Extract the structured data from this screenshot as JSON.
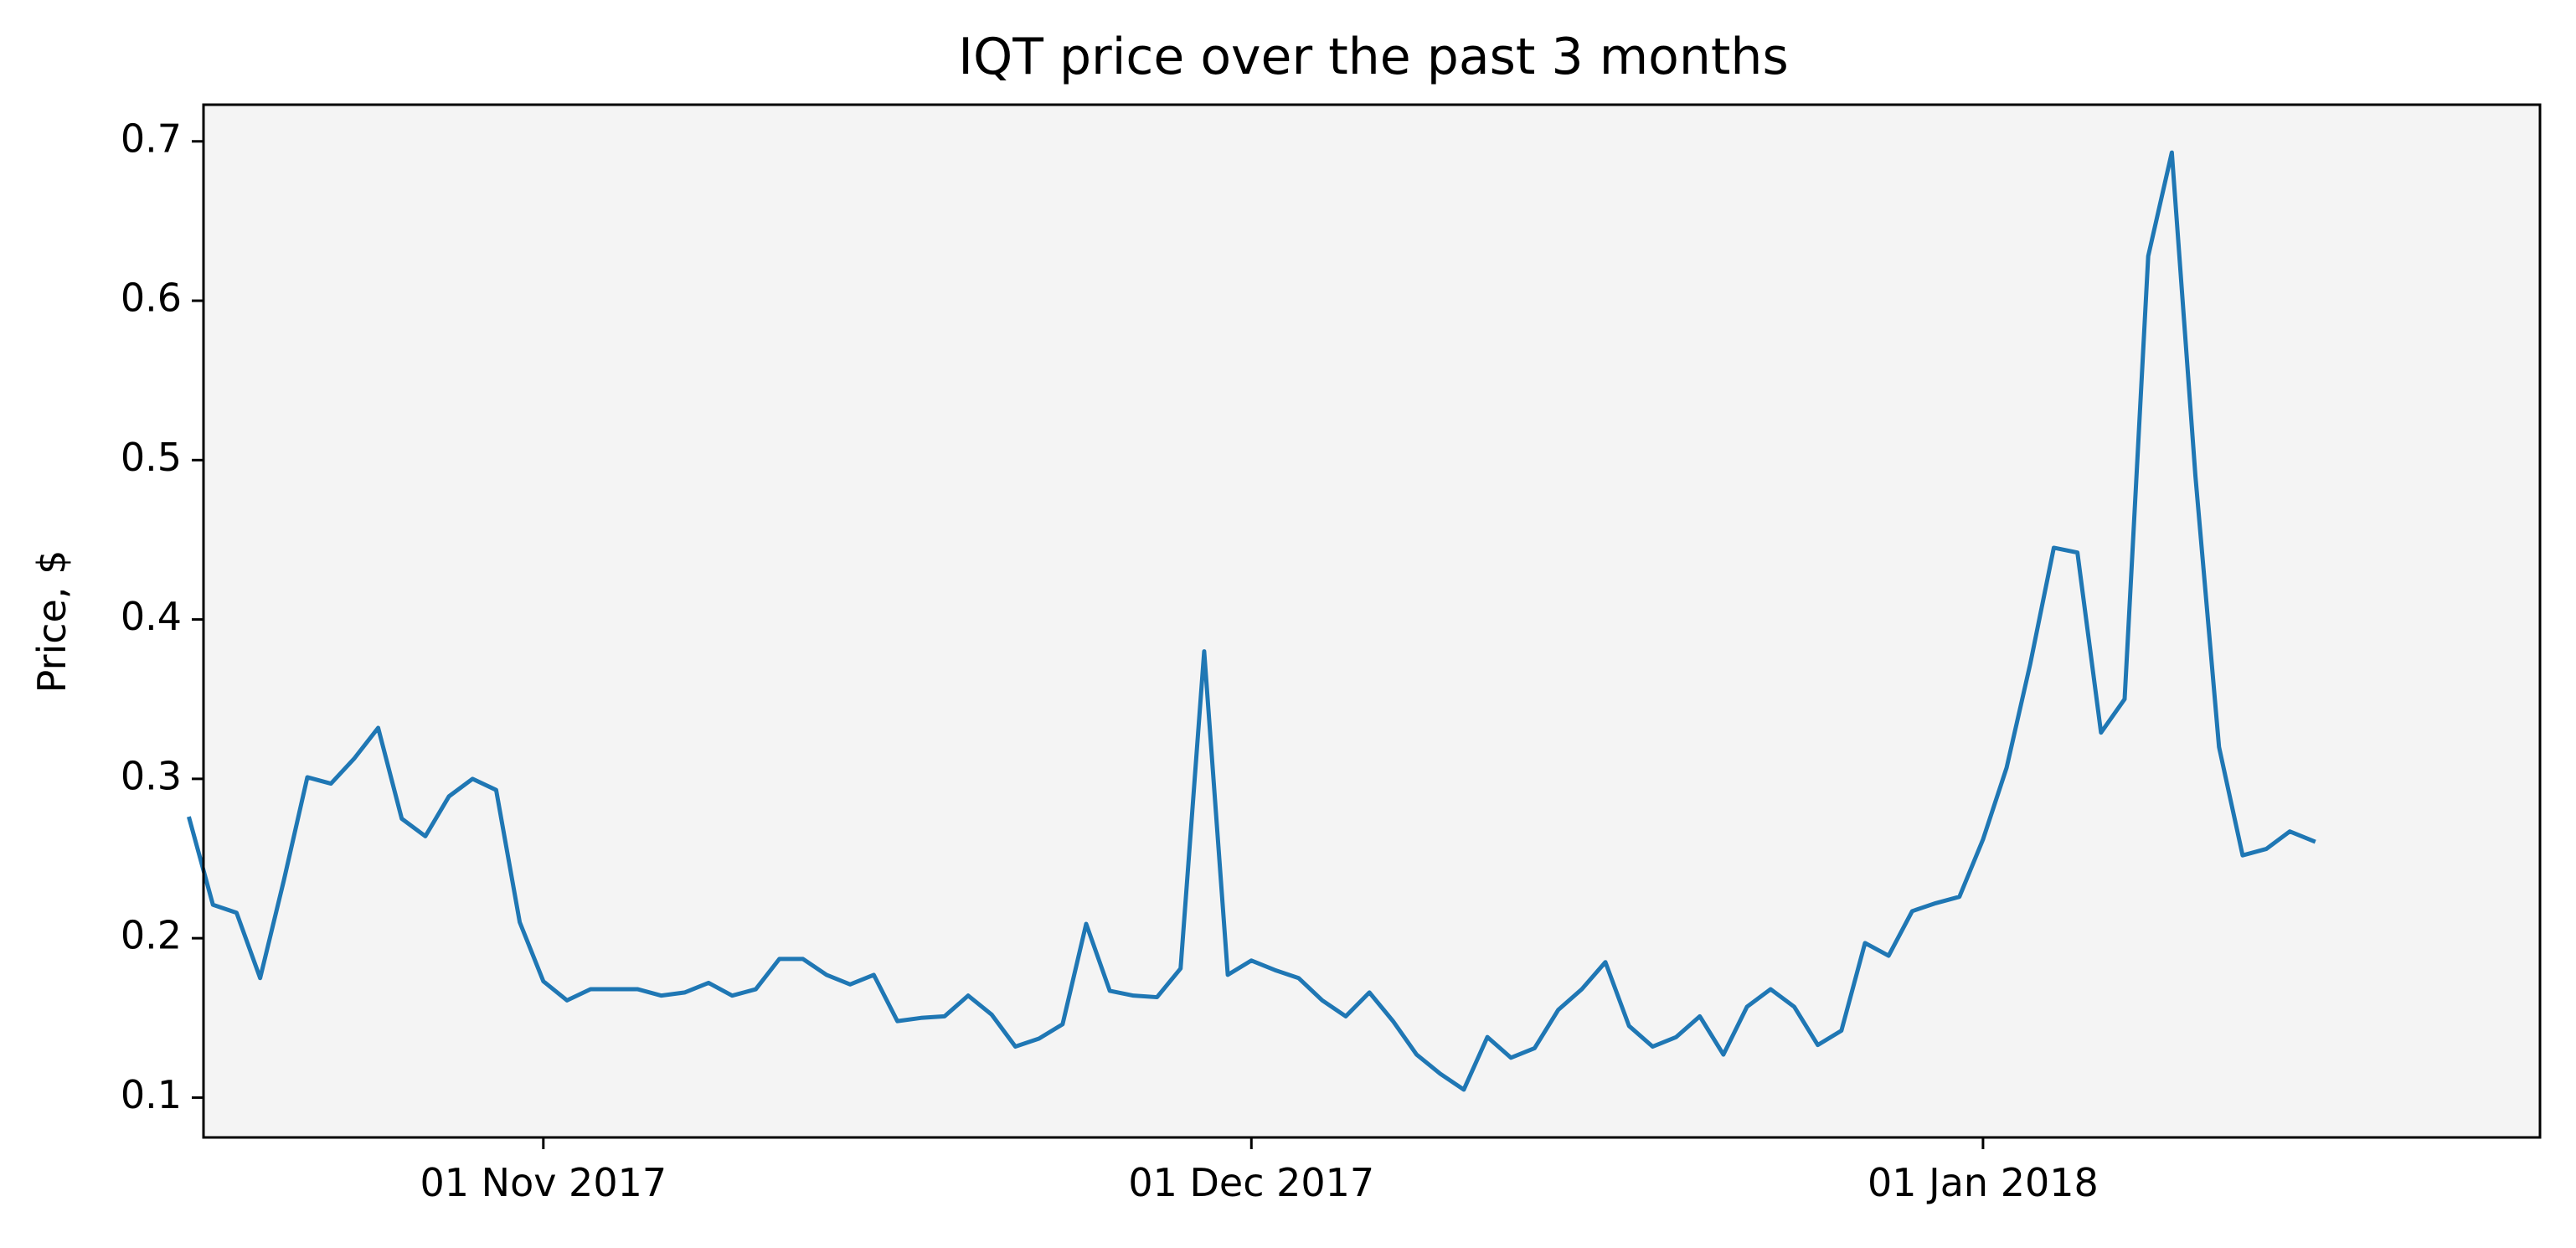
{
  "chart_data": {
    "type": "line",
    "title": "IQT price over the past 3 months",
    "xlabel": "",
    "ylabel": "Price, $",
    "ylim": [
      0.075,
      0.723
    ],
    "y_ticks": [
      0.1,
      0.2,
      0.3,
      0.4,
      0.5,
      0.6,
      0.7
    ],
    "y_tick_labels": [
      "0.1",
      "0.2",
      "0.3",
      "0.4",
      "0.5",
      "0.6",
      "0.7"
    ],
    "x_ticks": [
      {
        "day": 31,
        "label": "01 Nov 2017"
      },
      {
        "day": 61,
        "label": "01 Dec 2017"
      },
      {
        "day": 92,
        "label": "01 Jan 2018"
      }
    ],
    "xlim_days": [
      16.6,
      115.6
    ],
    "grid": false,
    "background_color": "#f4f4f4",
    "line_color": "#1f77b4",
    "series": [
      {
        "name": "IQT",
        "start_date": "2017-10-17",
        "step_days": 1,
        "values": [
          0.275,
          0.221,
          0.216,
          0.175,
          0.236,
          0.301,
          0.297,
          0.313,
          0.332,
          0.275,
          0.264,
          0.289,
          0.3,
          0.293,
          0.21,
          0.173,
          0.161,
          0.168,
          0.168,
          0.168,
          0.164,
          0.166,
          0.172,
          0.164,
          0.168,
          0.187,
          0.187,
          0.177,
          0.171,
          0.177,
          0.148,
          0.15,
          0.151,
          0.164,
          0.152,
          0.132,
          0.137,
          0.146,
          0.209,
          0.167,
          0.164,
          0.163,
          0.181,
          0.38,
          0.177,
          0.186,
          0.18,
          0.175,
          0.161,
          0.151,
          0.166,
          0.148,
          0.127,
          0.115,
          0.105,
          0.138,
          0.125,
          0.131,
          0.155,
          0.168,
          0.185,
          0.145,
          0.132,
          0.138,
          0.151,
          0.127,
          0.157,
          0.168,
          0.157,
          0.133,
          0.142,
          0.197,
          0.189,
          0.217,
          0.222,
          0.226,
          0.262,
          0.307,
          0.372,
          0.445,
          0.442,
          0.329,
          0.35,
          0.628,
          0.693,
          0.49,
          0.32,
          0.252,
          0.256,
          0.267,
          0.261
        ]
      }
    ]
  }
}
